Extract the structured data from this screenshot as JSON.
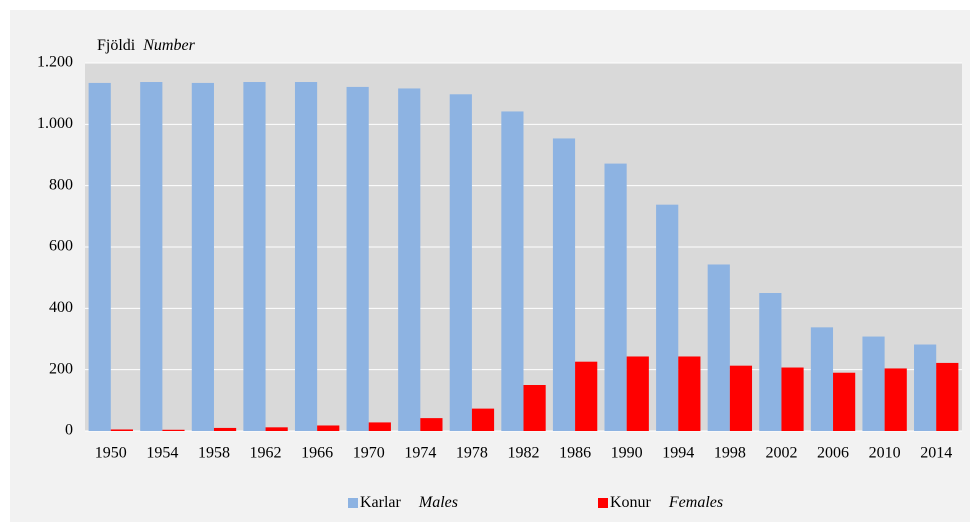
{
  "chart_data": {
    "type": "bar",
    "y_label": "Fjöldi",
    "y_label_en": "Number",
    "categories": [
      "1950",
      "1954",
      "1958",
      "1962",
      "1966",
      "1970",
      "1974",
      "1978",
      "1982",
      "1986",
      "1990",
      "1994",
      "1998",
      "2002",
      "2006",
      "2010",
      "2014"
    ],
    "series": [
      {
        "name": "Karlar",
        "name_en": "Males",
        "color": "#8db3e2",
        "values": [
          1135,
          1138,
          1135,
          1138,
          1138,
          1122,
          1117,
          1098,
          1042,
          954,
          872,
          738,
          543,
          450,
          338,
          308,
          282
        ]
      },
      {
        "name": "Konur",
        "name_en": "Females",
        "color": "#ff0000",
        "values": [
          5,
          4,
          10,
          12,
          18,
          28,
          42,
          73,
          150,
          226,
          243,
          243,
          213,
          207,
          190,
          204,
          222
        ]
      }
    ],
    "ylim": [
      0,
      1200
    ],
    "yticks": [
      0,
      200,
      400,
      600,
      800,
      {
        "value": 1000,
        "label": "1.000"
      },
      {
        "value": 1200,
        "label": "1.200"
      }
    ],
    "grid": true
  }
}
